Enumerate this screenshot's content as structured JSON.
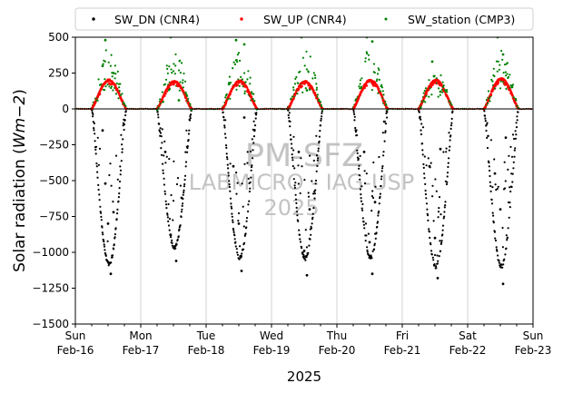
{
  "chart_data": {
    "type": "scatter",
    "xlabel": "2025",
    "ylabel": "Solar radiation (Wm−2)",
    "ylabel_parts": {
      "prefix": "Solar radiation (",
      "unit": "Wm",
      "exp": "−2",
      "suffix": ")"
    },
    "ylim": [
      -1500,
      500
    ],
    "xlim": [
      "2025-02-16",
      "2025-02-23"
    ],
    "yticks": [
      500,
      250,
      0,
      -250,
      -500,
      -750,
      -1000,
      -1250,
      -1500
    ],
    "ytick_labels": [
      "500",
      "250",
      "0",
      "−250",
      "−500",
      "−750",
      "−1000",
      "−1250",
      "−1500"
    ],
    "xticks": [
      {
        "date": "2025-02-16",
        "line1": "Sun",
        "line2": "Feb-16"
      },
      {
        "date": "2025-02-17",
        "line1": "Mon",
        "line2": "Feb-17"
      },
      {
        "date": "2025-02-18",
        "line1": "Tue",
        "line2": "Feb-18"
      },
      {
        "date": "2025-02-19",
        "line1": "Wed",
        "line2": "Feb-19"
      },
      {
        "date": "2025-02-20",
        "line1": "Thu",
        "line2": "Feb-20"
      },
      {
        "date": "2025-02-21",
        "line1": "Fri",
        "line2": "Feb-21"
      },
      {
        "date": "2025-02-22",
        "line1": "Sat",
        "line2": "Feb-22"
      },
      {
        "date": "2025-02-23",
        "line1": "Sun",
        "line2": "Feb-23"
      }
    ],
    "grid": "vertical at day ticks",
    "zero_line": true,
    "legend": {
      "placement": "top",
      "entries": [
        {
          "name": "SW_DN (CNR4)",
          "color": "#000000"
        },
        {
          "name": "SW_UP (CNR4)",
          "color": "#ff0000"
        },
        {
          "name": "SW_station (CMP3)",
          "color": "#008000"
        }
      ]
    },
    "series": [
      {
        "name": "SW_DN (CNR4)",
        "color": "#000000",
        "daily_min_approx": [
          -1200,
          -1070,
          -1150,
          -1160,
          -1150,
          -1220,
          -1220
        ],
        "sample_points": [
          [
            "2025-02-16 10:00",
            -150
          ],
          [
            "2025-02-16 11:00",
            -520
          ],
          [
            "2025-02-16 12:00",
            -800
          ],
          [
            "2025-02-16 13:00",
            -1150
          ],
          [
            "2025-02-16 14:00",
            -720
          ],
          [
            "2025-02-17 09:00",
            -300
          ],
          [
            "2025-02-17 11:00",
            -880
          ],
          [
            "2025-02-17 13:00",
            -1060
          ],
          [
            "2025-02-17 15:00",
            -620
          ],
          [
            "2025-02-18 10:00",
            -400
          ],
          [
            "2025-02-18 12:00",
            -800
          ],
          [
            "2025-02-18 13:00",
            -1130
          ],
          [
            "2025-02-18 14:00",
            -60
          ],
          [
            "2025-02-19 10:00",
            -300
          ],
          [
            "2025-02-19 12:00",
            -990
          ],
          [
            "2025-02-19 13:00",
            -1160
          ],
          [
            "2025-02-19 14:00",
            -700
          ],
          [
            "2025-02-20 10:00",
            -300
          ],
          [
            "2025-02-20 12:00",
            -930
          ],
          [
            "2025-02-20 13:00",
            -1150
          ],
          [
            "2025-02-20 14:00",
            -650
          ],
          [
            "2025-02-21 10:00",
            -400
          ],
          [
            "2025-02-21 12:00",
            -900
          ],
          [
            "2025-02-21 13:00",
            -1180
          ],
          [
            "2025-02-21 14:00",
            -280
          ],
          [
            "2025-02-22 10:00",
            -450
          ],
          [
            "2025-02-22 12:00",
            -700
          ],
          [
            "2025-02-22 13:00",
            -1220
          ],
          [
            "2025-02-22 14:00",
            -200
          ]
        ]
      },
      {
        "name": "SW_UP (CNR4)",
        "color": "#ff0000",
        "daily_max_approx": [
          200,
          190,
          195,
          190,
          200,
          200,
          210
        ],
        "sample_points": [
          [
            "2025-02-16 12:30",
            200
          ],
          [
            "2025-02-17 12:30",
            190
          ],
          [
            "2025-02-18 12:30",
            195
          ],
          [
            "2025-02-19 12:30",
            190
          ],
          [
            "2025-02-20 12:30",
            200
          ],
          [
            "2025-02-21 12:30",
            200
          ],
          [
            "2025-02-22 12:30",
            210
          ]
        ]
      },
      {
        "name": "SW_station (CMP3)",
        "color": "#008000",
        "daily_max_approx": [
          500,
          500,
          500,
          500,
          500,
          330,
          500
        ],
        "sample_points": [
          [
            "2025-02-16 10:00",
            300
          ],
          [
            "2025-02-16 11:00",
            480
          ],
          [
            "2025-02-16 14:00",
            250
          ],
          [
            "2025-02-17 11:00",
            500
          ],
          [
            "2025-02-17 14:00",
            60
          ],
          [
            "2025-02-18 11:00",
            480
          ],
          [
            "2025-02-18 14:00",
            450
          ],
          [
            "2025-02-19 11:00",
            500
          ],
          [
            "2025-02-19 13:00",
            130
          ],
          [
            "2025-02-20 11:00",
            500
          ],
          [
            "2025-02-20 13:00",
            470
          ],
          [
            "2025-02-21 11:00",
            330
          ],
          [
            "2025-02-21 14:00",
            120
          ],
          [
            "2025-02-22 11:00",
            500
          ],
          [
            "2025-02-22 13:00",
            380
          ]
        ]
      }
    ],
    "annotations": [
      "PM-SFZ",
      "LABMICRO - IAG-USP",
      "2025"
    ]
  }
}
